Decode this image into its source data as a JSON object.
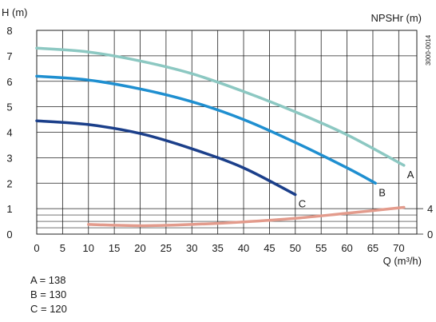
{
  "chart_data": {
    "type": "line",
    "ylabel_left": "H (m)",
    "ylabel_right": "NPSHr (m)",
    "xlabel": "Q (m³/h)",
    "code": "3000-0014",
    "x_ticks": [
      "0",
      "5",
      "10",
      "15",
      "20",
      "25",
      "30",
      "35",
      "40",
      "45",
      "50",
      "55",
      "60",
      "65",
      "70"
    ],
    "y_ticks_left": [
      "0",
      "1",
      "2",
      "3",
      "4",
      "5",
      "6",
      "7",
      "8"
    ],
    "y_ticks_right": [
      "0",
      "4"
    ],
    "xlim": [
      0,
      73.5
    ],
    "ylim": [
      0,
      8
    ],
    "npsh_ylim": [
      0,
      8
    ],
    "grid": true,
    "series": [
      {
        "name": "A",
        "color": "#8cc8c2",
        "axis": "H",
        "x": [
          0,
          10,
          20,
          30,
          40,
          50,
          60,
          71
        ],
        "y": [
          7.3,
          7.15,
          6.8,
          6.3,
          5.6,
          4.8,
          3.9,
          2.7
        ]
      },
      {
        "name": "B",
        "color": "#1f8fd0",
        "axis": "H",
        "x": [
          0,
          10,
          20,
          30,
          40,
          50,
          60,
          65.5
        ],
        "y": [
          6.2,
          6.05,
          5.7,
          5.2,
          4.5,
          3.6,
          2.6,
          2.0
        ]
      },
      {
        "name": "C",
        "color": "#1b3f8a",
        "axis": "H",
        "x": [
          0,
          10,
          20,
          30,
          40,
          50
        ],
        "y": [
          4.45,
          4.3,
          3.95,
          3.35,
          2.6,
          1.55
        ]
      },
      {
        "name": "NPSHr",
        "color": "#e39b8c",
        "axis": "NPSH",
        "x": [
          10,
          20,
          30,
          40,
          50,
          60,
          71
        ],
        "y": [
          0.38,
          0.33,
          0.38,
          0.48,
          0.62,
          0.82,
          1.05
        ]
      }
    ]
  },
  "legend": {
    "items": [
      "A = 138",
      "B = 130",
      "C = 120"
    ]
  }
}
